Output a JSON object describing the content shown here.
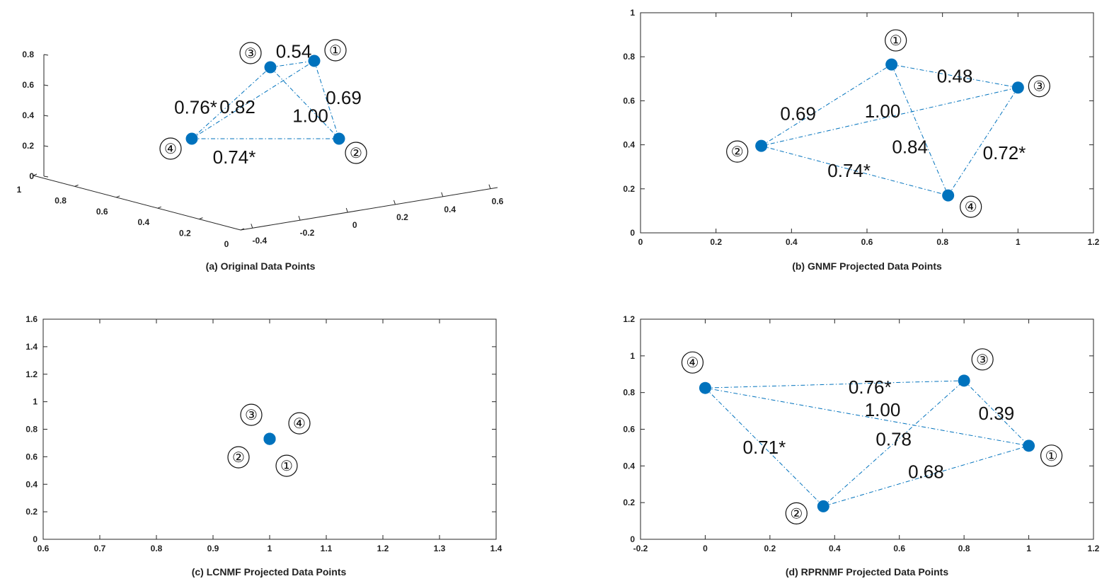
{
  "styles": {
    "point_color": "#0072BD",
    "edge_color": "#0072BD",
    "axis_color": "#262626"
  },
  "chart_data": [
    {
      "id": "a",
      "type": "scatter",
      "projection": "3d",
      "title": "(a) Original Data Points",
      "z_ticks": [
        "0",
        "0.2",
        "0.4",
        "0.6",
        "0.8"
      ],
      "x_ticks": [
        "1",
        "0.8",
        "0.6",
        "0.4",
        "0.2",
        "0"
      ],
      "y_ticks": [
        "-0.4",
        "-0.2",
        "0",
        "0.2",
        "0.4",
        "0.6"
      ],
      "points": [
        {
          "label": "①"
        },
        {
          "label": "②"
        },
        {
          "label": "③"
        },
        {
          "label": "④"
        }
      ],
      "edges": [
        {
          "from": 2,
          "to": 0,
          "weight": "0.54"
        },
        {
          "from": 3,
          "to": 2,
          "weight": "0.76*"
        },
        {
          "from": 3,
          "to": 0,
          "weight": "0.82"
        },
        {
          "from": 0,
          "to": 1,
          "weight": "0.69"
        },
        {
          "from": 2,
          "to": 1,
          "weight": "1.00"
        },
        {
          "from": 3,
          "to": 1,
          "weight": "0.74*"
        }
      ]
    },
    {
      "id": "b",
      "type": "scatter",
      "title": "(b) GNMF Projected Data Points",
      "xlim": [
        0,
        1.2
      ],
      "ylim": [
        0,
        1
      ],
      "x_ticks": [
        0,
        0.2,
        0.4,
        0.6,
        0.8,
        1,
        1.2
      ],
      "y_ticks": [
        0,
        0.2,
        0.4,
        0.6,
        0.8,
        1
      ],
      "points": [
        {
          "label": "①",
          "x": 0.665,
          "y": 0.765
        },
        {
          "label": "②",
          "x": 0.32,
          "y": 0.395
        },
        {
          "label": "③",
          "x": 1.0,
          "y": 0.66
        },
        {
          "label": "④",
          "x": 0.815,
          "y": 0.17
        }
      ],
      "edges": [
        {
          "from": 1,
          "to": 0,
          "weight": "0.69"
        },
        {
          "from": 0,
          "to": 2,
          "weight": "0.48"
        },
        {
          "from": 1,
          "to": 2,
          "weight": "1.00"
        },
        {
          "from": 2,
          "to": 3,
          "weight": "0.72*"
        },
        {
          "from": 0,
          "to": 3,
          "weight": "0.84"
        },
        {
          "from": 1,
          "to": 3,
          "weight": "0.74*"
        }
      ]
    },
    {
      "id": "c",
      "type": "scatter",
      "title": "(c) LCNMF Projected Data Points",
      "xlim": [
        0.6,
        1.4
      ],
      "ylim": [
        0,
        1.6
      ],
      "x_ticks": [
        0.6,
        0.7,
        0.8,
        0.9,
        1,
        1.1,
        1.2,
        1.3,
        1.4
      ],
      "y_ticks": [
        0,
        0.2,
        0.4,
        0.6,
        0.8,
        1,
        1.2,
        1.4,
        1.6
      ],
      "points": [
        {
          "label": "①",
          "x": 1.0,
          "y": 0.73
        },
        {
          "label": "②",
          "x": 1.0,
          "y": 0.73
        },
        {
          "label": "③",
          "x": 1.0,
          "y": 0.73
        },
        {
          "label": "④",
          "x": 1.0,
          "y": 0.73
        }
      ],
      "edges": []
    },
    {
      "id": "d",
      "type": "scatter",
      "title": "(d) RPRNMF Projected Data Points",
      "xlim": [
        -0.2,
        1.2
      ],
      "ylim": [
        0,
        1.2
      ],
      "x_ticks": [
        -0.2,
        0,
        0.2,
        0.4,
        0.6,
        0.8,
        1,
        1.2
      ],
      "y_ticks": [
        0,
        0.2,
        0.4,
        0.6,
        0.8,
        1,
        1.2
      ],
      "points": [
        {
          "label": "①",
          "x": 1.0,
          "y": 0.51
        },
        {
          "label": "②",
          "x": 0.365,
          "y": 0.18
        },
        {
          "label": "③",
          "x": 0.8,
          "y": 0.865
        },
        {
          "label": "④",
          "x": 0.0,
          "y": 0.825
        }
      ],
      "edges": [
        {
          "from": 3,
          "to": 2,
          "weight": "0.76*"
        },
        {
          "from": 3,
          "to": 0,
          "weight": "1.00"
        },
        {
          "from": 2,
          "to": 0,
          "weight": "0.39"
        },
        {
          "from": 3,
          "to": 1,
          "weight": "0.71*"
        },
        {
          "from": 1,
          "to": 2,
          "weight": "0.78"
        },
        {
          "from": 1,
          "to": 0,
          "weight": "0.68"
        }
      ]
    }
  ]
}
